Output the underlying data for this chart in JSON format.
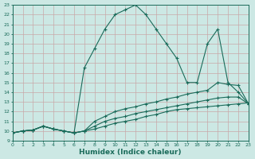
{
  "xlabel": "Humidex (Indice chaleur)",
  "background_color": "#cce8e4",
  "grid_color": "#b8d8d4",
  "line_color": "#1a6b5a",
  "xlim": [
    0,
    23
  ],
  "ylim": [
    9,
    23
  ],
  "xticks": [
    0,
    1,
    2,
    3,
    4,
    5,
    6,
    7,
    8,
    9,
    10,
    11,
    12,
    13,
    14,
    15,
    16,
    17,
    18,
    19,
    20,
    21,
    22,
    23
  ],
  "yticks": [
    9,
    10,
    11,
    12,
    13,
    14,
    15,
    16,
    17,
    18,
    19,
    20,
    21,
    22,
    23
  ],
  "lines": [
    {
      "x": [
        0,
        1,
        2,
        3,
        4,
        5,
        6,
        7,
        8,
        9,
        10,
        11,
        12,
        13,
        14,
        15,
        16,
        17,
        18,
        19,
        20,
        21,
        22,
        23
      ],
      "y": [
        9.8,
        10.0,
        10.1,
        10.5,
        10.2,
        10.0,
        9.8,
        10.0,
        10.2,
        10.5,
        10.8,
        11.0,
        11.2,
        11.5,
        11.7,
        12.0,
        12.2,
        12.3,
        12.4,
        12.5,
        12.6,
        12.7,
        12.8,
        12.9
      ]
    },
    {
      "x": [
        0,
        1,
        2,
        3,
        4,
        5,
        6,
        7,
        8,
        9,
        10,
        11,
        12,
        13,
        14,
        15,
        16,
        17,
        18,
        19,
        20,
        21,
        22,
        23
      ],
      "y": [
        9.8,
        10.0,
        10.1,
        10.5,
        10.2,
        10.0,
        9.8,
        10.0,
        10.5,
        11.0,
        11.3,
        11.5,
        11.8,
        12.0,
        12.2,
        12.4,
        12.6,
        12.8,
        13.0,
        13.2,
        13.4,
        13.5,
        13.5,
        12.8
      ]
    },
    {
      "x": [
        0,
        1,
        2,
        3,
        4,
        5,
        6,
        7,
        8,
        9,
        10,
        11,
        12,
        13,
        14,
        15,
        16,
        17,
        18,
        19,
        20,
        21,
        22,
        23
      ],
      "y": [
        9.8,
        10.0,
        10.1,
        10.5,
        10.2,
        10.0,
        9.8,
        10.0,
        11.0,
        11.5,
        12.0,
        12.3,
        12.5,
        12.8,
        13.0,
        13.3,
        13.5,
        13.8,
        14.0,
        14.2,
        15.0,
        14.8,
        14.7,
        12.8
      ]
    },
    {
      "x": [
        0,
        1,
        2,
        3,
        4,
        5,
        6,
        7,
        8,
        9,
        10,
        11,
        12,
        13,
        14,
        15,
        16,
        17,
        18,
        19,
        20,
        21,
        22,
        23
      ],
      "y": [
        9.8,
        10.0,
        10.1,
        10.5,
        10.2,
        10.0,
        9.8,
        16.5,
        18.5,
        20.5,
        22.0,
        22.5,
        23.0,
        22.0,
        20.5,
        19.0,
        17.5,
        15.0,
        15.0,
        19.0,
        20.5,
        15.0,
        14.0,
        12.8
      ]
    }
  ]
}
